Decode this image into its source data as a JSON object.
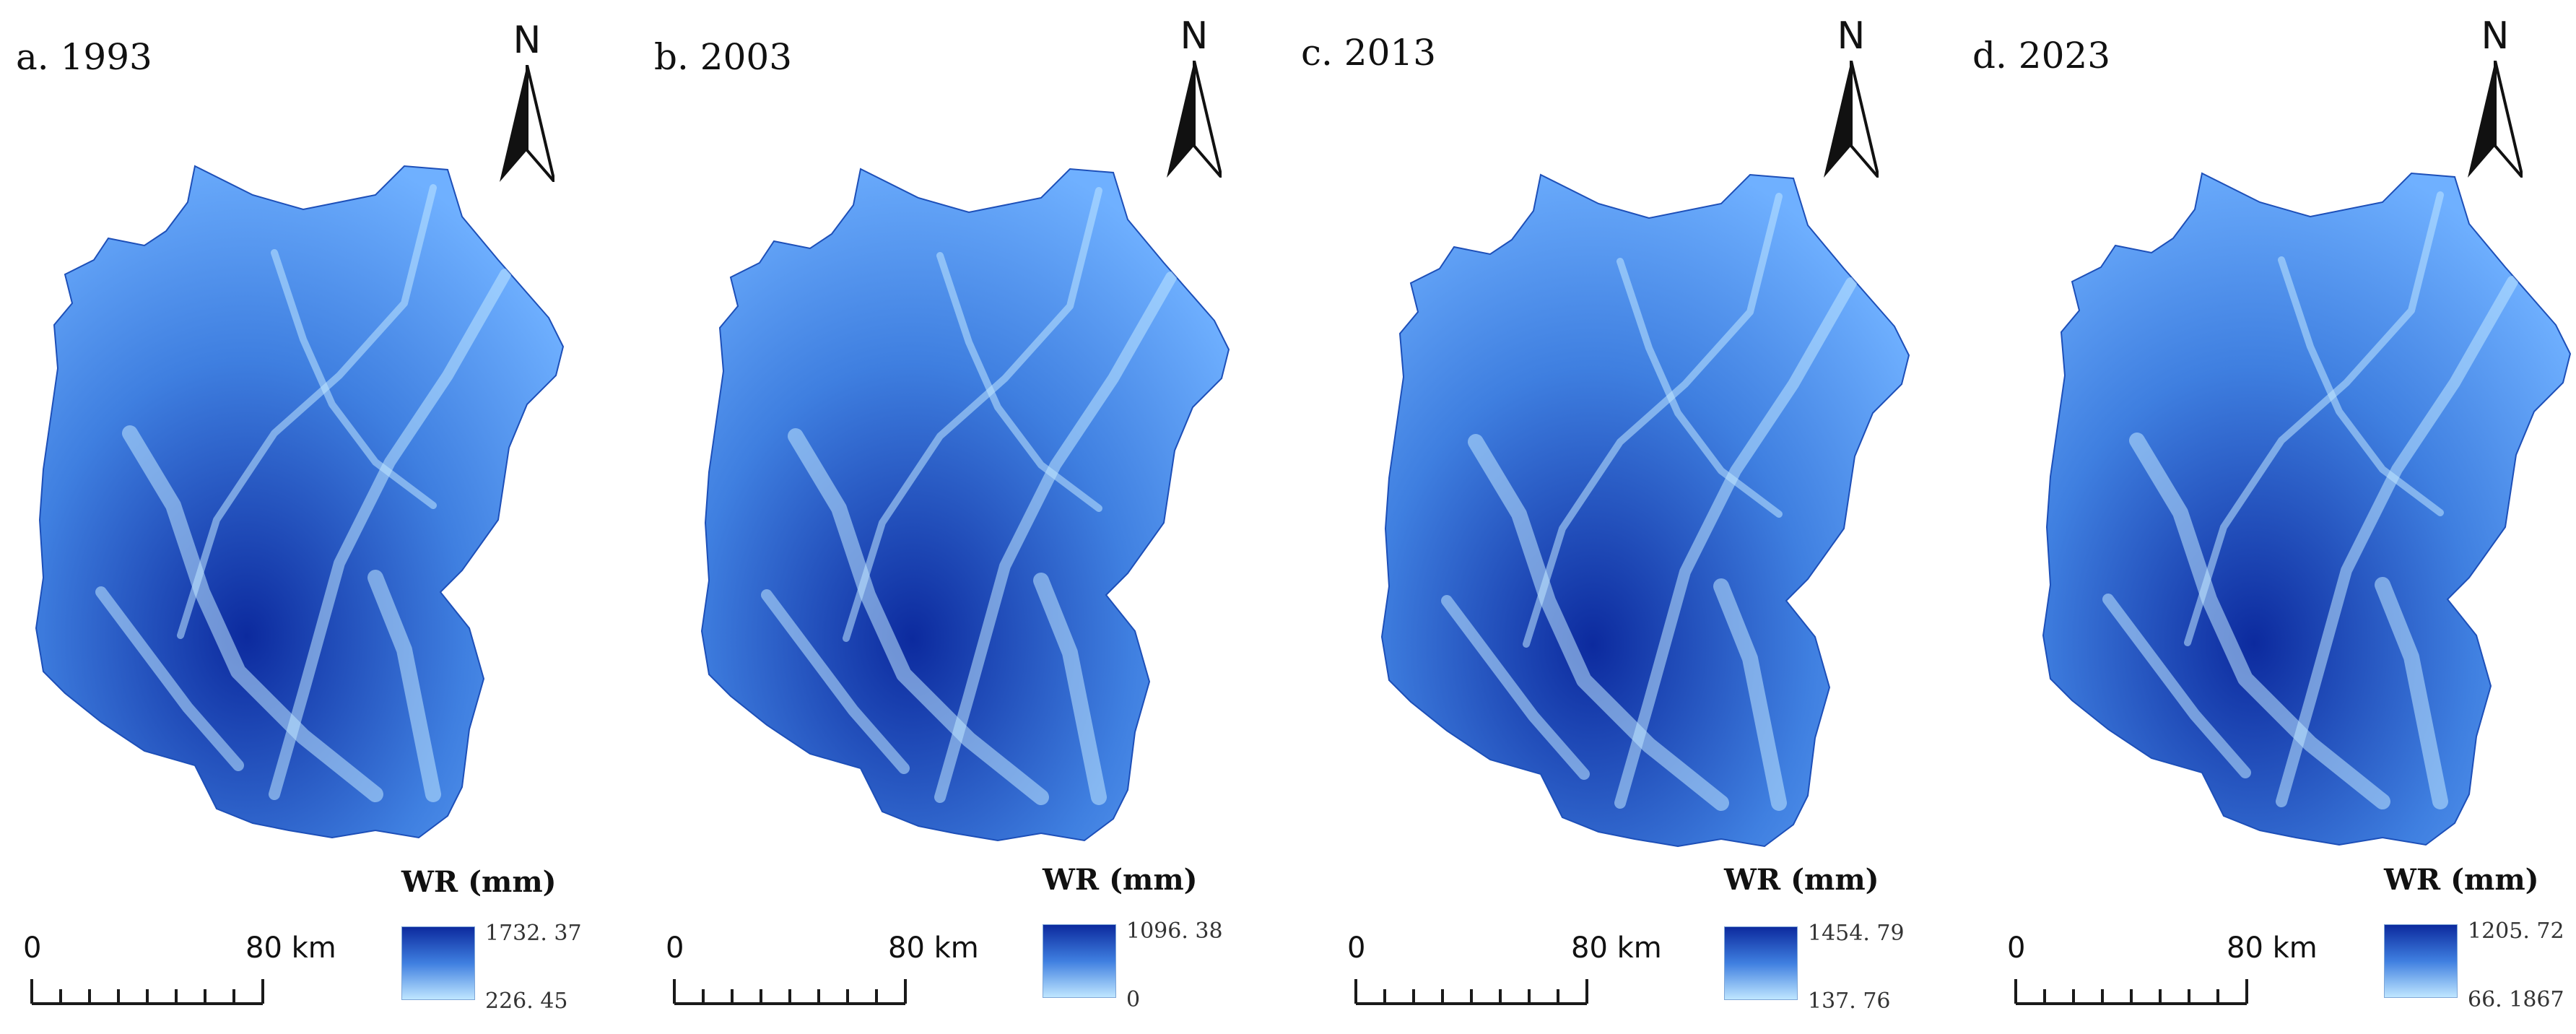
{
  "figure": {
    "colors": {
      "low": "#bfe6ff",
      "mid": "#3f7fe0",
      "high": "#0c2a9e",
      "outline": "#1a1a1a"
    },
    "north_label": "N",
    "panels": [
      {
        "label": "a. 1993",
        "legend_title": "WR (mm)",
        "legend_max": "1732. 37",
        "legend_min": "226. 45",
        "scale_zero": "0",
        "scale_label": "80 km"
      },
      {
        "label": "b. 2003",
        "legend_title": "WR (mm)",
        "legend_max": "1096. 38",
        "legend_min": "0",
        "scale_zero": "0",
        "scale_label": "80 km"
      },
      {
        "label": "c. 2013",
        "legend_title": "WR (mm)",
        "legend_max": "1454. 79",
        "legend_min": "137. 76",
        "scale_zero": "0",
        "scale_label": "80 km"
      },
      {
        "label": "d. 2023",
        "legend_title": "WR (mm)",
        "legend_max": "1205. 72",
        "legend_min": "66. 1867",
        "scale_zero": "0",
        "scale_label": "80 km"
      }
    ]
  }
}
